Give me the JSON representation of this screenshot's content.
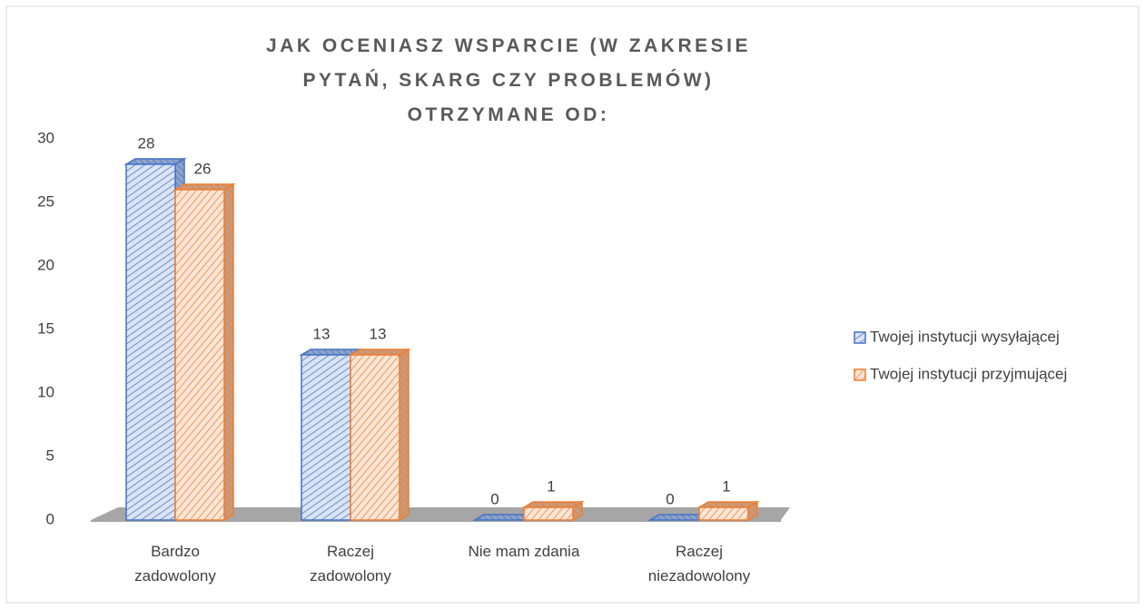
{
  "chart_data": {
    "type": "bar3d",
    "title": "JAK OCENIASZ WSPARCIE (W ZAKRESIE PYTAŃ, SKARG CZY PROBLEMÓW) OTRZYMANE OD:",
    "categories": [
      "Bardzo zadowolony",
      "Raczej zadowolony",
      "Nie mam zdania",
      "Raczej niezadowolony"
    ],
    "series": [
      {
        "name": "Twojej instytucji wysyłającej",
        "color": "#4472c4",
        "values": [
          28,
          13,
          0,
          0
        ]
      },
      {
        "name": "Twojej instytucji przyjmującej",
        "color": "#ed7d31",
        "values": [
          26,
          13,
          1,
          1
        ]
      }
    ],
    "ylim": [
      0,
      30
    ],
    "yticks": [
      0,
      5,
      10,
      15,
      20,
      25,
      30
    ],
    "grid": false,
    "legend": "right"
  }
}
